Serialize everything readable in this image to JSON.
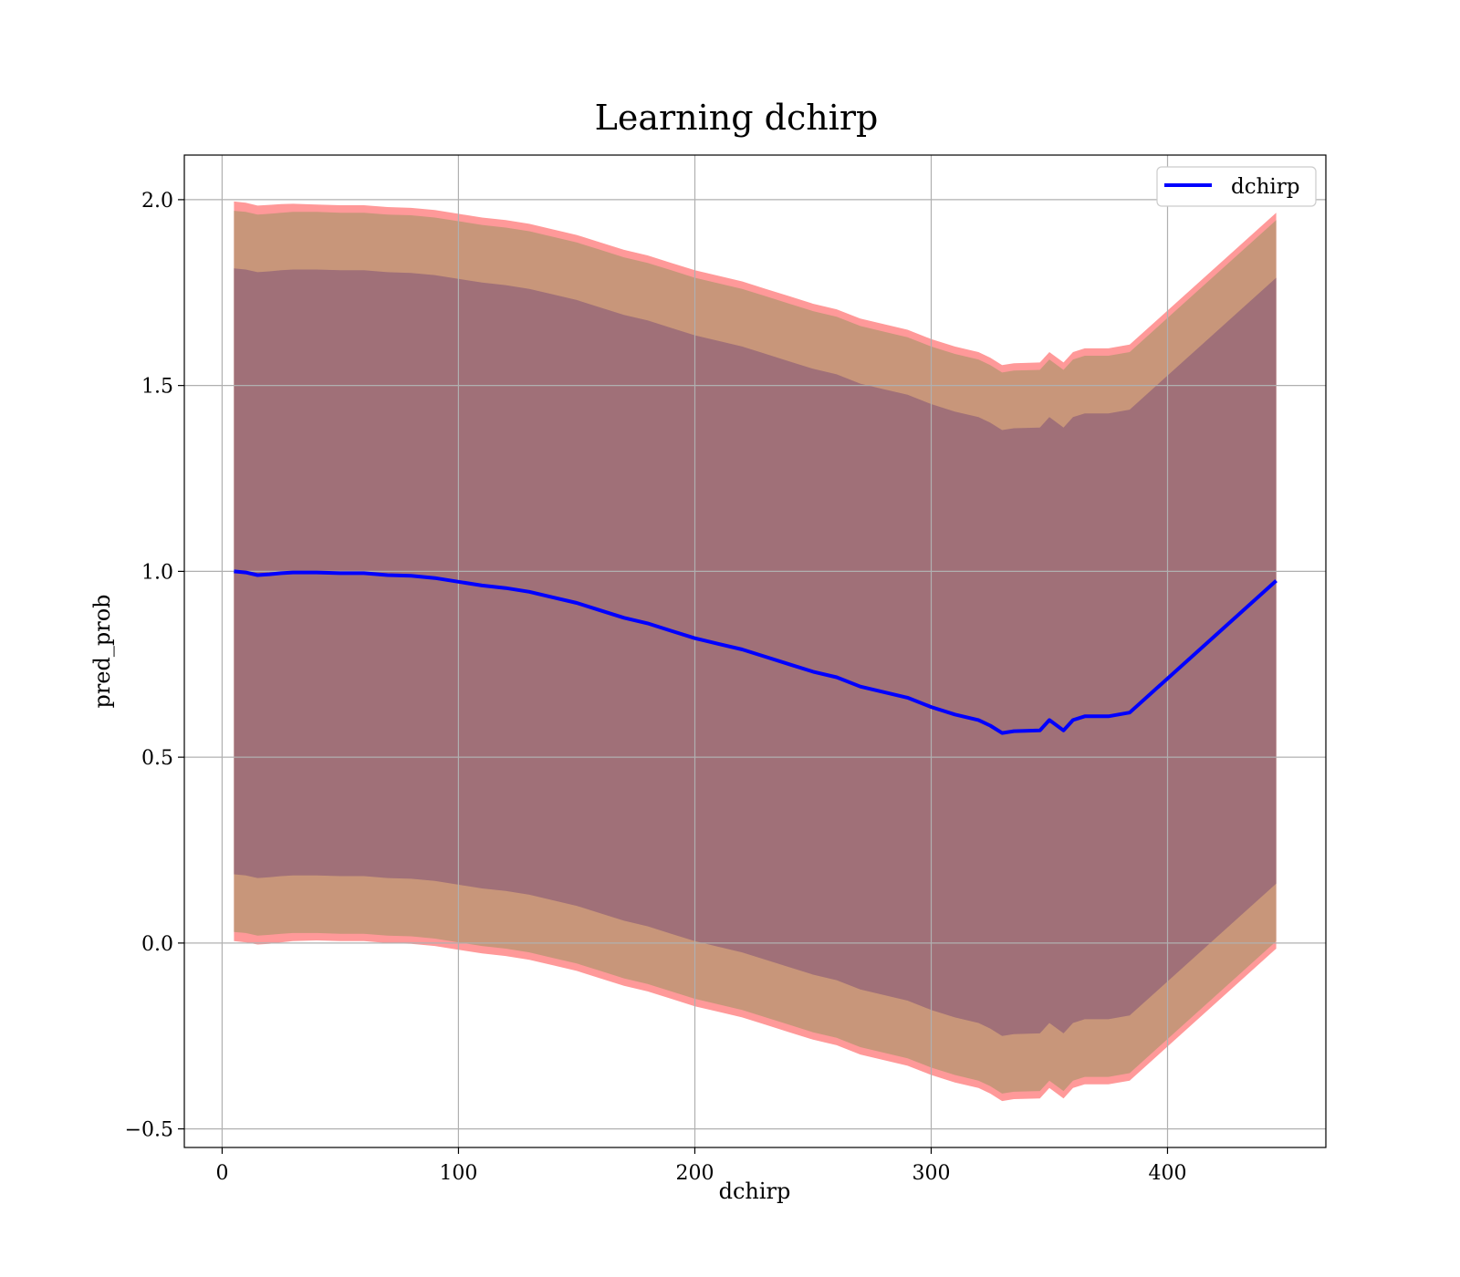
{
  "chart_data": {
    "type": "line",
    "title": "Learning dchirp",
    "xlabel": "dchirp",
    "ylabel": "pred_prob",
    "xlim": [
      -16,
      467
    ],
    "ylim": [
      -0.55,
      2.12
    ],
    "xticks": [
      0,
      100,
      200,
      300,
      400
    ],
    "yticks": [
      -0.5,
      0.0,
      0.5,
      1.0,
      1.5,
      2.0
    ],
    "xtick_labels": [
      "0",
      "100",
      "200",
      "300",
      "400"
    ],
    "ytick_labels": [
      "−0.5",
      "0.0",
      "0.5",
      "1.0",
      "1.5",
      "2.0"
    ],
    "grid": true,
    "legend": {
      "position": "top-right",
      "entries": [
        "dchirp"
      ]
    },
    "colors": {
      "line": "#0000ff",
      "outer_band": "#ff9999",
      "middle_band": "#c8967a",
      "inner_band": "#a07078"
    },
    "series": [
      {
        "name": "dchirp",
        "x": [
          5,
          10,
          15,
          20,
          25,
          30,
          40,
          50,
          60,
          70,
          80,
          90,
          100,
          110,
          120,
          130,
          140,
          150,
          160,
          170,
          180,
          190,
          200,
          210,
          220,
          230,
          240,
          250,
          260,
          270,
          280,
          290,
          300,
          310,
          320,
          325,
          330,
          335,
          346,
          350,
          356,
          360,
          365,
          375,
          384,
          446
        ],
        "y": [
          1.0,
          0.997,
          0.99,
          0.992,
          0.995,
          0.997,
          0.997,
          0.995,
          0.995,
          0.99,
          0.988,
          0.982,
          0.972,
          0.962,
          0.955,
          0.945,
          0.93,
          0.915,
          0.895,
          0.875,
          0.86,
          0.84,
          0.82,
          0.805,
          0.79,
          0.77,
          0.75,
          0.73,
          0.715,
          0.69,
          0.675,
          0.66,
          0.635,
          0.615,
          0.6,
          0.585,
          0.565,
          0.57,
          0.572,
          0.6,
          0.572,
          0.6,
          0.61,
          0.61,
          0.62,
          0.975
        ]
      }
    ],
    "bands": [
      {
        "level": "outer",
        "halfwidth": [
          0.995,
          0.995,
          0.994,
          0.994,
          0.993,
          0.992,
          0.99,
          0.99,
          0.99,
          0.99,
          0.99,
          0.99,
          0.99,
          0.99,
          0.99,
          0.99,
          0.99,
          0.99,
          0.99,
          0.99,
          0.99,
          0.99,
          0.99,
          0.99,
          0.99,
          0.99,
          0.99,
          0.99,
          0.99,
          0.99,
          0.99,
          0.99,
          0.99,
          0.99,
          0.99,
          0.99,
          0.99,
          0.99,
          0.99,
          0.99,
          0.99,
          0.99,
          0.99,
          0.99,
          0.99,
          0.99
        ]
      },
      {
        "level": "middle",
        "halfwidth": [
          0.97,
          0.97,
          0.97,
          0.97,
          0.97,
          0.97,
          0.97,
          0.97,
          0.97,
          0.97,
          0.97,
          0.97,
          0.97,
          0.97,
          0.97,
          0.97,
          0.97,
          0.97,
          0.97,
          0.97,
          0.97,
          0.97,
          0.97,
          0.97,
          0.97,
          0.97,
          0.97,
          0.97,
          0.97,
          0.97,
          0.97,
          0.97,
          0.97,
          0.97,
          0.97,
          0.97,
          0.97,
          0.97,
          0.97,
          0.97,
          0.97,
          0.97,
          0.97,
          0.97,
          0.97,
          0.97
        ]
      },
      {
        "level": "inner",
        "halfwidth": [
          0.815,
          0.815,
          0.815,
          0.815,
          0.815,
          0.815,
          0.815,
          0.815,
          0.815,
          0.815,
          0.815,
          0.815,
          0.815,
          0.815,
          0.815,
          0.815,
          0.815,
          0.815,
          0.815,
          0.815,
          0.815,
          0.815,
          0.815,
          0.815,
          0.815,
          0.815,
          0.815,
          0.815,
          0.815,
          0.815,
          0.815,
          0.815,
          0.815,
          0.815,
          0.815,
          0.815,
          0.815,
          0.815,
          0.815,
          0.815,
          0.815,
          0.815,
          0.815,
          0.815,
          0.815,
          0.815
        ]
      }
    ]
  }
}
